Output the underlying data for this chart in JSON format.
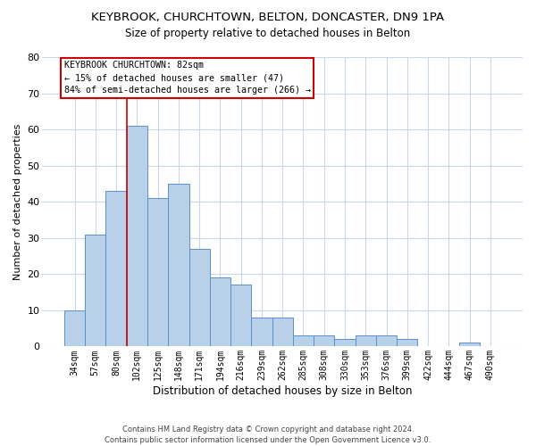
{
  "title_line1": "KEYBROOK, CHURCHTOWN, BELTON, DONCASTER, DN9 1PA",
  "title_line2": "Size of property relative to detached houses in Belton",
  "xlabel": "Distribution of detached houses by size in Belton",
  "ylabel": "Number of detached properties",
  "categories": [
    "34sqm",
    "57sqm",
    "80sqm",
    "102sqm",
    "125sqm",
    "148sqm",
    "171sqm",
    "194sqm",
    "216sqm",
    "239sqm",
    "262sqm",
    "285sqm",
    "308sqm",
    "330sqm",
    "353sqm",
    "376sqm",
    "399sqm",
    "422sqm",
    "444sqm",
    "467sqm",
    "490sqm"
  ],
  "values": [
    10,
    31,
    43,
    61,
    41,
    45,
    27,
    19,
    17,
    8,
    8,
    3,
    3,
    2,
    3,
    3,
    2,
    0,
    0,
    1,
    0
  ],
  "bar_color": "#b8d0e8",
  "bar_edge_color": "#5a8fcc",
  "ylim": [
    0,
    80
  ],
  "yticks": [
    0,
    10,
    20,
    30,
    40,
    50,
    60,
    70,
    80
  ],
  "annotation_line1": "KEYBROOK CHURCHTOWN: 82sqm",
  "annotation_line2": "← 15% of detached houses are smaller (47)",
  "annotation_line3": "84% of semi-detached houses are larger (266) →",
  "vline_bar_idx": 2,
  "annotation_box_facecolor": "#ffffff",
  "annotation_box_edgecolor": "#cc0000",
  "footer_line1": "Contains HM Land Registry data © Crown copyright and database right 2024.",
  "footer_line2": "Contains public sector information licensed under the Open Government Licence v3.0.",
  "background_color": "#ffffff",
  "grid_color": "#c8d8ea"
}
